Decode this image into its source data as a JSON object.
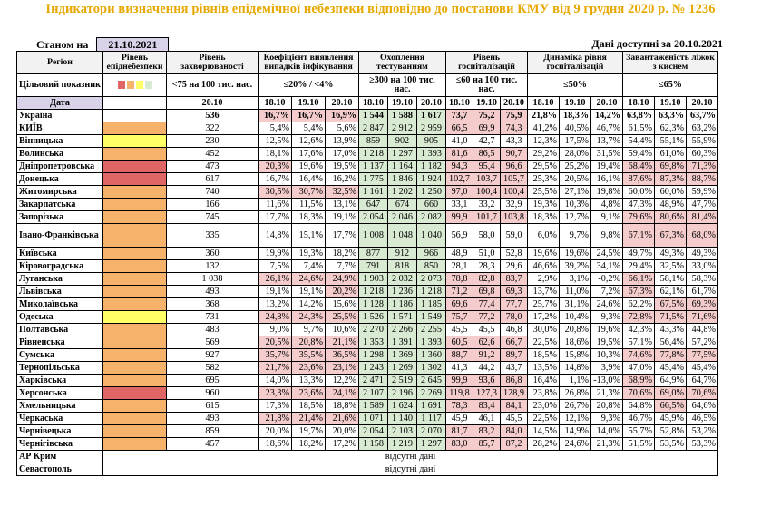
{
  "title": "Індикатори визначення рівнів епідемічної небезпеки відповідно до постанови КМУ від 9 грудня 2020 р. № 1236",
  "status_label": "Станом на",
  "status_date": "21.10.2021",
  "data_available_label": "Дані доступні за",
  "data_available_date": "20.10.2021",
  "colors": {
    "red": "#e06666",
    "orange": "#f6b26b",
    "yellow": "#ffff66",
    "pink": "#f4cccc",
    "green": "#d9ead3",
    "title": "#e6a800",
    "date": "#d9d2e9"
  },
  "header": {
    "region": "Регіон",
    "level": "Рівень епіднебезпеки",
    "incidence": "Рівень захворюваності",
    "detection": "Коефіцієнт виявлення випадків інфікування",
    "testing": "Охоплення тестуванням",
    "hosp": "Рівень госпіталізацій",
    "dynamics": "Динаміка рівня госпіталізацій",
    "oxygen": "Завантаженість ліжок з киснем",
    "target_label": "Цільовий показник",
    "target_incidence": "<75 на 100 тис. нас.",
    "target_detection": "≤20% / <4%",
    "target_testing": "≥300 на 100 тис. нас.",
    "target_hosp": "≤60 на 100 тис. нас.",
    "target_dynamics": "≤50%",
    "target_oxygen": "≤65%",
    "date_label": "Дата",
    "incidence_date": "20.10",
    "dates": [
      "18.10",
      "19.10",
      "20.10"
    ],
    "legend_colors": [
      "#e06666",
      "#f6b26b",
      "#ffff66",
      "#d9ead3"
    ]
  },
  "rows": [
    {
      "name": "Україна",
      "level": "none",
      "inc": "536",
      "det": [
        "16,7%",
        "16,7%",
        "16,9%"
      ],
      "test": [
        "1 544",
        "1 588",
        "1 617"
      ],
      "hosp": [
        "73,7",
        "75,2",
        "75,9"
      ],
      "dyn": [
        "21,8%",
        "18,3%",
        "14,2%"
      ],
      "oxy": [
        "63,8%",
        "63,3%",
        "63,7%"
      ],
      "det_p": [
        1,
        1,
        1
      ],
      "test_g": [
        1,
        1,
        1
      ],
      "hosp_p": [
        1,
        1,
        1
      ],
      "oxy_p": [
        0,
        0,
        0
      ]
    },
    {
      "name": "КИЇВ",
      "level": "orange",
      "inc": "322",
      "det": [
        "5,4%",
        "5,4%",
        "5,6%"
      ],
      "test": [
        "2 847",
        "2 912",
        "2 959"
      ],
      "hosp": [
        "66,5",
        "69,9",
        "74,3"
      ],
      "dyn": [
        "41,2%",
        "40,5%",
        "46,7%"
      ],
      "oxy": [
        "61,5%",
        "62,3%",
        "63,2%"
      ],
      "det_p": [
        0,
        0,
        0
      ],
      "test_g": [
        1,
        1,
        1
      ],
      "hosp_p": [
        1,
        1,
        1
      ],
      "oxy_p": [
        0,
        0,
        0
      ]
    },
    {
      "name": "Вінницька",
      "level": "yellow",
      "inc": "230",
      "det": [
        "12,5%",
        "12,6%",
        "13,9%"
      ],
      "test": [
        "859",
        "902",
        "905"
      ],
      "hosp": [
        "41,0",
        "42,7",
        "43,3"
      ],
      "dyn": [
        "12,3%",
        "17,5%",
        "13,7%"
      ],
      "oxy": [
        "54,4%",
        "55,1%",
        "55,9%"
      ],
      "det_p": [
        0,
        0,
        0
      ],
      "test_g": [
        1,
        1,
        1
      ],
      "hosp_p": [
        0,
        0,
        0
      ],
      "oxy_p": [
        0,
        0,
        0
      ]
    },
    {
      "name": "Волинська",
      "level": "orange",
      "inc": "452",
      "det": [
        "18,1%",
        "17,6%",
        "17,0%"
      ],
      "test": [
        "1 218",
        "1 297",
        "1 393"
      ],
      "hosp": [
        "81,6",
        "86,5",
        "90,7"
      ],
      "dyn": [
        "29,2%",
        "28,0%",
        "31,5%"
      ],
      "oxy": [
        "59,4%",
        "61,0%",
        "60,3%"
      ],
      "det_p": [
        0,
        0,
        0
      ],
      "test_g": [
        1,
        1,
        1
      ],
      "hosp_p": [
        1,
        1,
        1
      ],
      "oxy_p": [
        0,
        0,
        0
      ]
    },
    {
      "name": "Дніпропетровська",
      "level": "red",
      "inc": "473",
      "det": [
        "20,3%",
        "19,6%",
        "19,5%"
      ],
      "test": [
        "1 137",
        "1 164",
        "1 182"
      ],
      "hosp": [
        "94,3",
        "95,4",
        "96,6"
      ],
      "dyn": [
        "29,5%",
        "25,2%",
        "19,4%"
      ],
      "oxy": [
        "68,4%",
        "69,8%",
        "71,3%"
      ],
      "det_p": [
        1,
        0,
        0
      ],
      "test_g": [
        1,
        1,
        1
      ],
      "hosp_p": [
        1,
        1,
        1
      ],
      "oxy_p": [
        1,
        1,
        1
      ]
    },
    {
      "name": "Донецька",
      "level": "red",
      "inc": "617",
      "det": [
        "16,7%",
        "16,4%",
        "16,2%"
      ],
      "test": [
        "1 775",
        "1 846",
        "1 924"
      ],
      "hosp": [
        "102,7",
        "103,7",
        "105,7"
      ],
      "dyn": [
        "25,3%",
        "20,5%",
        "16,1%"
      ],
      "oxy": [
        "87,6%",
        "87,3%",
        "88,7%"
      ],
      "det_p": [
        0,
        0,
        0
      ],
      "test_g": [
        1,
        1,
        1
      ],
      "hosp_p": [
        1,
        1,
        1
      ],
      "oxy_p": [
        1,
        1,
        1
      ]
    },
    {
      "name": "Житомирська",
      "level": "orange",
      "inc": "740",
      "det": [
        "30,5%",
        "30,7%",
        "32,5%"
      ],
      "test": [
        "1 161",
        "1 202",
        "1 250"
      ],
      "hosp": [
        "97,0",
        "100,4",
        "100,4"
      ],
      "dyn": [
        "25,5%",
        "27,1%",
        "19,8%"
      ],
      "oxy": [
        "60,0%",
        "60,0%",
        "59,9%"
      ],
      "det_p": [
        1,
        1,
        1
      ],
      "test_g": [
        1,
        1,
        1
      ],
      "hosp_p": [
        1,
        1,
        1
      ],
      "oxy_p": [
        0,
        0,
        0
      ]
    },
    {
      "name": "Закарпатська",
      "level": "orange",
      "inc": "166",
      "det": [
        "11,6%",
        "11,5%",
        "13,1%"
      ],
      "test": [
        "647",
        "674",
        "660"
      ],
      "hosp": [
        "33,1",
        "33,2",
        "32,9"
      ],
      "dyn": [
        "19,3%",
        "10,3%",
        "4,8%"
      ],
      "oxy": [
        "47,3%",
        "48,9%",
        "47,7%"
      ],
      "det_p": [
        0,
        0,
        0
      ],
      "test_g": [
        1,
        1,
        1
      ],
      "hosp_p": [
        0,
        0,
        0
      ],
      "oxy_p": [
        0,
        0,
        0
      ]
    },
    {
      "name": "Запорізька",
      "level": "orange",
      "inc": "745",
      "det": [
        "17,7%",
        "18,3%",
        "19,1%"
      ],
      "test": [
        "2 054",
        "2 046",
        "2 082"
      ],
      "hosp": [
        "99,9",
        "101,7",
        "103,8"
      ],
      "dyn": [
        "18,3%",
        "12,7%",
        "9,1%"
      ],
      "oxy": [
        "79,6%",
        "80,6%",
        "81,4%"
      ],
      "det_p": [
        0,
        0,
        0
      ],
      "test_g": [
        1,
        1,
        1
      ],
      "hosp_p": [
        1,
        1,
        1
      ],
      "oxy_p": [
        1,
        1,
        1
      ]
    },
    {
      "name": "Івано-Франківська",
      "tall": true,
      "level": "orange",
      "inc": "335",
      "det": [
        "14,8%",
        "15,1%",
        "17,7%"
      ],
      "test": [
        "1 008",
        "1 048",
        "1 040"
      ],
      "hosp": [
        "56,9",
        "58,0",
        "59,0"
      ],
      "dyn": [
        "6,0%",
        "9,7%",
        "9,8%"
      ],
      "oxy": [
        "67,1%",
        "67,3%",
        "68,0%"
      ],
      "det_p": [
        0,
        0,
        0
      ],
      "test_g": [
        1,
        1,
        1
      ],
      "hosp_p": [
        0,
        0,
        0
      ],
      "oxy_p": [
        1,
        1,
        1
      ]
    },
    {
      "name": "Київська",
      "level": "orange",
      "inc": "360",
      "det": [
        "19,9%",
        "19,3%",
        "18,2%"
      ],
      "test": [
        "877",
        "912",
        "966"
      ],
      "hosp": [
        "48,9",
        "51,0",
        "52,8"
      ],
      "dyn": [
        "19,6%",
        "19,6%",
        "24,5%"
      ],
      "oxy": [
        "49,7%",
        "49,3%",
        "49,3%"
      ],
      "det_p": [
        0,
        0,
        0
      ],
      "test_g": [
        1,
        1,
        1
      ],
      "hosp_p": [
        0,
        0,
        0
      ],
      "oxy_p": [
        0,
        0,
        0
      ]
    },
    {
      "name": "Кіровоградська",
      "level": "orange",
      "inc": "132",
      "det": [
        "7,5%",
        "7,4%",
        "7,7%"
      ],
      "test": [
        "791",
        "818",
        "850"
      ],
      "hosp": [
        "28,1",
        "28,3",
        "29,6"
      ],
      "dyn": [
        "46,6%",
        "39,2%",
        "34,1%"
      ],
      "oxy": [
        "29,4%",
        "32,5%",
        "33,0%"
      ],
      "det_p": [
        0,
        0,
        0
      ],
      "test_g": [
        1,
        1,
        1
      ],
      "hosp_p": [
        0,
        0,
        0
      ],
      "oxy_p": [
        0,
        0,
        0
      ]
    },
    {
      "name": "Луганська",
      "level": "orange",
      "inc": "1 038",
      "det": [
        "26,1%",
        "24,6%",
        "24,9%"
      ],
      "test": [
        "1 903",
        "2 032",
        "2 073"
      ],
      "hosp": [
        "78,8",
        "82,8",
        "83,7"
      ],
      "dyn": [
        "2,9%",
        "3,1%",
        "-0,2%"
      ],
      "oxy": [
        "66,1%",
        "58,1%",
        "58,3%"
      ],
      "det_p": [
        1,
        1,
        1
      ],
      "test_g": [
        1,
        1,
        1
      ],
      "hosp_p": [
        1,
        1,
        1
      ],
      "oxy_p": [
        1,
        0,
        0
      ]
    },
    {
      "name": "Львівська",
      "level": "orange",
      "inc": "493",
      "det": [
        "19,1%",
        "19,1%",
        "20,2%"
      ],
      "test": [
        "1 218",
        "1 236",
        "1 218"
      ],
      "hosp": [
        "71,2",
        "69,8",
        "69,3"
      ],
      "dyn": [
        "13,7%",
        "11,0%",
        "7,2%"
      ],
      "oxy": [
        "67,3%",
        "62,1%",
        "61,7%"
      ],
      "det_p": [
        0,
        0,
        1
      ],
      "test_g": [
        1,
        1,
        1
      ],
      "hosp_p": [
        1,
        1,
        1
      ],
      "oxy_p": [
        1,
        0,
        0
      ]
    },
    {
      "name": "Миколаївська",
      "level": "orange",
      "inc": "368",
      "det": [
        "13,2%",
        "14,2%",
        "15,6%"
      ],
      "test": [
        "1 128",
        "1 186",
        "1 185"
      ],
      "hosp": [
        "69,6",
        "77,4",
        "77,7"
      ],
      "dyn": [
        "25,7%",
        "31,1%",
        "24,6%"
      ],
      "oxy": [
        "62,2%",
        "67,5%",
        "69,3%"
      ],
      "det_p": [
        0,
        0,
        0
      ],
      "test_g": [
        1,
        1,
        1
      ],
      "hosp_p": [
        1,
        1,
        1
      ],
      "oxy_p": [
        0,
        1,
        1
      ]
    },
    {
      "name": "Одеська",
      "level": "yellow",
      "inc": "731",
      "det": [
        "24,8%",
        "24,3%",
        "25,5%"
      ],
      "test": [
        "1 526",
        "1 571",
        "1 549"
      ],
      "hosp": [
        "75,7",
        "77,2",
        "78,0"
      ],
      "dyn": [
        "17,2%",
        "10,4%",
        "9,3%"
      ],
      "oxy": [
        "72,8%",
        "71,5%",
        "71,6%"
      ],
      "det_p": [
        1,
        1,
        1
      ],
      "test_g": [
        1,
        1,
        1
      ],
      "hosp_p": [
        1,
        1,
        1
      ],
      "oxy_p": [
        1,
        1,
        1
      ]
    },
    {
      "name": "Полтавська",
      "level": "orange",
      "inc": "483",
      "det": [
        "9,0%",
        "9,7%",
        "10,6%"
      ],
      "test": [
        "2 270",
        "2 266",
        "2 255"
      ],
      "hosp": [
        "45,5",
        "45,5",
        "46,8"
      ],
      "dyn": [
        "30,0%",
        "20,8%",
        "19,6%"
      ],
      "oxy": [
        "42,3%",
        "43,3%",
        "44,8%"
      ],
      "det_p": [
        0,
        0,
        0
      ],
      "test_g": [
        1,
        1,
        1
      ],
      "hosp_p": [
        0,
        0,
        0
      ],
      "oxy_p": [
        0,
        0,
        0
      ]
    },
    {
      "name": "Рівненська",
      "level": "orange",
      "inc": "569",
      "det": [
        "20,5%",
        "20,8%",
        "21,1%"
      ],
      "test": [
        "1 353",
        "1 391",
        "1 393"
      ],
      "hosp": [
        "60,5",
        "62,6",
        "66,7"
      ],
      "dyn": [
        "22,5%",
        "18,6%",
        "19,5%"
      ],
      "oxy": [
        "57,1%",
        "56,4%",
        "57,2%"
      ],
      "det_p": [
        1,
        1,
        1
      ],
      "test_g": [
        1,
        1,
        1
      ],
      "hosp_p": [
        1,
        1,
        1
      ],
      "oxy_p": [
        0,
        0,
        0
      ]
    },
    {
      "name": "Сумська",
      "level": "orange",
      "inc": "927",
      "det": [
        "35,7%",
        "35,5%",
        "36,5%"
      ],
      "test": [
        "1 298",
        "1 369",
        "1 360"
      ],
      "hosp": [
        "88,7",
        "91,2",
        "89,7"
      ],
      "dyn": [
        "18,5%",
        "15,8%",
        "10,3%"
      ],
      "oxy": [
        "74,6%",
        "77,8%",
        "77,5%"
      ],
      "det_p": [
        1,
        1,
        1
      ],
      "test_g": [
        1,
        1,
        1
      ],
      "hosp_p": [
        1,
        1,
        1
      ],
      "oxy_p": [
        1,
        1,
        1
      ]
    },
    {
      "name": "Тернопільська",
      "level": "orange",
      "inc": "582",
      "det": [
        "21,7%",
        "23,6%",
        "23,1%"
      ],
      "test": [
        "1 243",
        "1 269",
        "1 302"
      ],
      "hosp": [
        "41,3",
        "44,2",
        "43,7"
      ],
      "dyn": [
        "13,5%",
        "14,8%",
        "3,9%"
      ],
      "oxy": [
        "47,0%",
        "45,4%",
        "45,4%"
      ],
      "det_p": [
        1,
        1,
        1
      ],
      "test_g": [
        1,
        1,
        1
      ],
      "hosp_p": [
        0,
        0,
        0
      ],
      "oxy_p": [
        0,
        0,
        0
      ]
    },
    {
      "name": "Харківська",
      "level": "orange",
      "inc": "695",
      "det": [
        "14,0%",
        "13,3%",
        "12,2%"
      ],
      "test": [
        "2 471",
        "2 519",
        "2 645"
      ],
      "hosp": [
        "99,9",
        "93,6",
        "86,8"
      ],
      "dyn": [
        "16,4%",
        "1,1%",
        "-13,0%"
      ],
      "oxy": [
        "68,9%",
        "64,9%",
        "64,7%"
      ],
      "det_p": [
        0,
        0,
        0
      ],
      "test_g": [
        1,
        1,
        1
      ],
      "hosp_p": [
        1,
        1,
        1
      ],
      "oxy_p": [
        1,
        0,
        0
      ]
    },
    {
      "name": "Херсонська",
      "level": "red",
      "inc": "960",
      "det": [
        "23,3%",
        "23,6%",
        "24,1%"
      ],
      "test": [
        "2 107",
        "2 196",
        "2 269"
      ],
      "hosp": [
        "119,8",
        "127,3",
        "128,9"
      ],
      "dyn": [
        "23,8%",
        "26,8%",
        "21,3%"
      ],
      "oxy": [
        "70,6%",
        "69,0%",
        "70,6%"
      ],
      "det_p": [
        1,
        1,
        1
      ],
      "test_g": [
        1,
        1,
        1
      ],
      "hosp_p": [
        1,
        1,
        1
      ],
      "oxy_p": [
        1,
        1,
        1
      ]
    },
    {
      "name": "Хмельницька",
      "level": "orange",
      "inc": "615",
      "det": [
        "17,3%",
        "18,5%",
        "18,8%"
      ],
      "test": [
        "1 589",
        "1 624",
        "1 691"
      ],
      "hosp": [
        "78,3",
        "83,4",
        "84,1"
      ],
      "dyn": [
        "23,0%",
        "26,7%",
        "20,8%"
      ],
      "oxy": [
        "64,8%",
        "66,5%",
        "64,6%"
      ],
      "det_p": [
        0,
        0,
        0
      ],
      "test_g": [
        1,
        1,
        1
      ],
      "hosp_p": [
        1,
        1,
        1
      ],
      "oxy_p": [
        0,
        1,
        0
      ]
    },
    {
      "name": "Черкаська",
      "level": "orange",
      "inc": "493",
      "det": [
        "21,8%",
        "21,4%",
        "21,6%"
      ],
      "test": [
        "1 071",
        "1 140",
        "1 117"
      ],
      "hosp": [
        "45,9",
        "46,1",
        "45,5"
      ],
      "dyn": [
        "22,5%",
        "12,1%",
        "9,3%"
      ],
      "oxy": [
        "46,7%",
        "45,9%",
        "46,5%"
      ],
      "det_p": [
        1,
        1,
        1
      ],
      "test_g": [
        1,
        1,
        1
      ],
      "hosp_p": [
        0,
        0,
        0
      ],
      "oxy_p": [
        0,
        0,
        0
      ]
    },
    {
      "name": "Чернівецька",
      "level": "orange",
      "inc": "859",
      "det": [
        "20,0%",
        "19,7%",
        "20,0%"
      ],
      "test": [
        "2 054",
        "2 103",
        "2 070"
      ],
      "hosp": [
        "81,7",
        "83,2",
        "84,0"
      ],
      "dyn": [
        "14,5%",
        "14,9%",
        "14,0%"
      ],
      "oxy": [
        "55,7%",
        "52,8%",
        "53,2%"
      ],
      "det_p": [
        0,
        0,
        0
      ],
      "test_g": [
        1,
        1,
        1
      ],
      "hosp_p": [
        1,
        1,
        1
      ],
      "oxy_p": [
        0,
        0,
        0
      ]
    },
    {
      "name": "Чернігівська",
      "level": "orange",
      "inc": "457",
      "det": [
        "18,6%",
        "18,2%",
        "17,2%"
      ],
      "test": [
        "1 158",
        "1 219",
        "1 297"
      ],
      "hosp": [
        "83,0",
        "85,7",
        "87,2"
      ],
      "dyn": [
        "28,2%",
        "24,6%",
        "21,3%"
      ],
      "oxy": [
        "51,5%",
        "53,5%",
        "53,3%"
      ],
      "det_p": [
        0,
        0,
        0
      ],
      "test_g": [
        1,
        1,
        1
      ],
      "hosp_p": [
        1,
        1,
        1
      ],
      "oxy_p": [
        0,
        0,
        0
      ]
    }
  ],
  "missing_rows": [
    {
      "name": "АР Крим",
      "text": "відсутні дані"
    },
    {
      "name": "Севастополь",
      "text": "відсутні дані"
    }
  ]
}
